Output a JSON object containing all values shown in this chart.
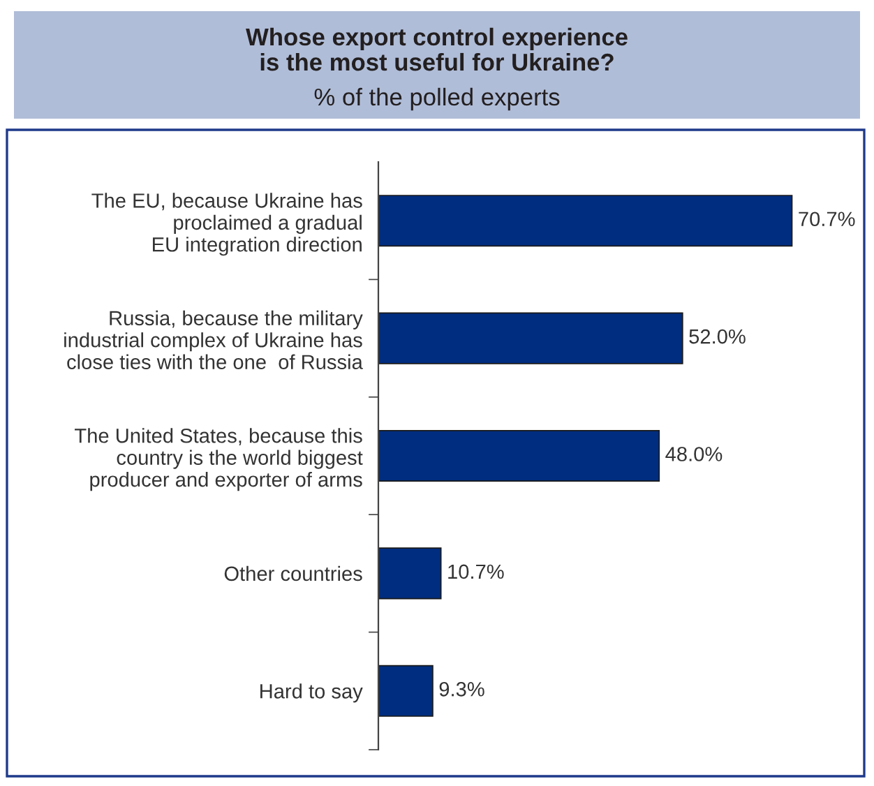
{
  "chart_data": {
    "type": "bar",
    "orientation": "horizontal",
    "title": "Whose export control experience\nis the most useful for Ukraine?",
    "subtitle": "% of the polled experts",
    "categories": [
      "The EU, because Ukraine has\nproclaimed a gradual\nEU integration direction",
      "Russia, because the military\nindustrial complex of Ukraine has\nclose ties with the one  of Russia",
      "The United States, because this\ncountry is the world biggest\nproducer and exporter of arms",
      "Other countries",
      "Hard to say"
    ],
    "values": [
      70.7,
      52.0,
      48.0,
      10.7,
      9.3
    ],
    "value_labels": [
      "70.7%",
      "52.0%",
      "48.0%",
      "10.7%",
      "9.3%"
    ],
    "color": "#002d7f",
    "grid": false,
    "legend": false
  }
}
